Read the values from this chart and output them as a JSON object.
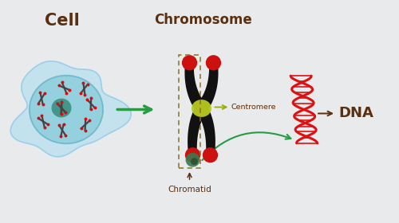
{
  "bg_color": "#e8eaec",
  "cell_title": "Cell",
  "chromosome_title": "Chromosome",
  "chromatid_label": "Chromatid",
  "centromere_label": "Centromere",
  "dna_label": "DNA",
  "cell_blob_color": "#b8dff0",
  "cell_blob_edge": "#88c8e8",
  "nucleus_color": "#7cc8d8",
  "nucleus_edge": "#55aabb",
  "nucleolus_color": "#3a9080",
  "chromosome_color": "#111111",
  "chromosome_tip_color": "#cc1111",
  "centromere_color": "#b8c820",
  "chromatid_end_color": "#3a7a50",
  "chromatid_end_dark": "#2a4a30",
  "dna_color": "#dd1111",
  "arrow_color_main": "#2a9a44",
  "arrow_color_small": "#2a9a44",
  "label_color": "#5a3010",
  "title_color": "#5a3010",
  "mini_chrom_color": "#444444",
  "mini_chrom_tip": "#cc1111",
  "dashed_box_color": "#8B7020"
}
